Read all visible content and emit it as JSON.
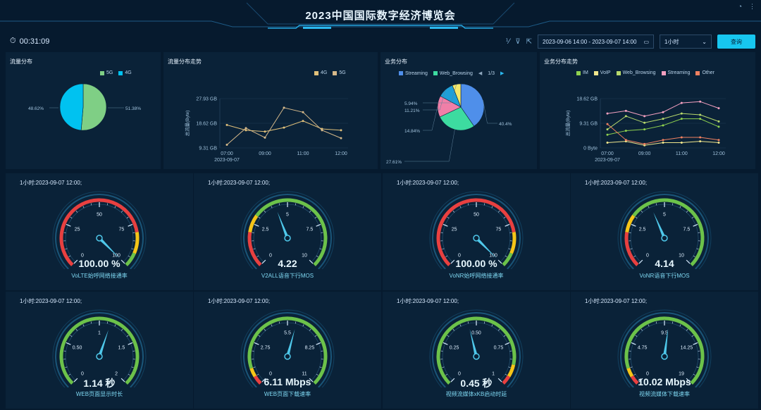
{
  "header": {
    "title": "2023中国国际数字经济博览会"
  },
  "timer": {
    "value": "00:31:09"
  },
  "toolbar": {
    "date_range": "2023-09-06 14:00 - 2023-09-07 14:00",
    "granularity": "1小时",
    "query_label": "查询"
  },
  "colors": {
    "accent": "#17c6ef",
    "green": "#6cc24a",
    "red": "#e84040",
    "yellow": "#f5c518"
  },
  "chart_data": [
    {
      "id": "traffic_pie",
      "type": "pie",
      "title": "流量分布",
      "series": [
        {
          "name": "5G",
          "value": 51.38,
          "label": "51.38%",
          "color": "#7fcf85"
        },
        {
          "name": "4G",
          "value": 48.62,
          "label": "48.62%",
          "color": "#00c2f0"
        }
      ]
    },
    {
      "id": "traffic_trend",
      "type": "line",
      "title": "流量分布走势",
      "ylabel": "总流量(Byte)",
      "yticks": [
        "9.31 GB",
        "18.62 GB",
        "27.93 GB"
      ],
      "ylim": [
        9.31,
        27.93
      ],
      "xticks": [
        "07:00",
        "09:00",
        "11:00",
        "12:00"
      ],
      "xsub": "2023-09-07",
      "x": [
        0,
        1,
        2,
        3,
        4,
        5,
        6
      ],
      "series": [
        {
          "name": "4G",
          "color": "#e0c07a",
          "values": [
            18,
            16,
            15.5,
            17,
            19.5,
            16.5,
            16
          ]
        },
        {
          "name": "5G",
          "color": "#d6b98a",
          "values": [
            10.5,
            16.8,
            13.2,
            24.5,
            22.8,
            16,
            13
          ]
        }
      ]
    },
    {
      "id": "service_pie",
      "type": "pie",
      "title": "业务分布",
      "legend": [
        "Streaming",
        "Web_Browsing"
      ],
      "pager": "1/3",
      "series": [
        {
          "value": 40.4,
          "label": "40.4%",
          "color": "#4f8fea"
        },
        {
          "value": 27.61,
          "label": "27.61%",
          "color": "#3ddba0"
        },
        {
          "value": 14.84,
          "label": "14.84%",
          "color": "#f07fa8"
        },
        {
          "value": 11.21,
          "label": "11.21%",
          "color": "#1f9fd8"
        },
        {
          "value": 5.94,
          "label": "5.94%",
          "color": "#f4e76a"
        }
      ]
    },
    {
      "id": "service_trend",
      "type": "line",
      "title": "业务分布走势",
      "ylabel": "总流量(Byte)",
      "yticks": [
        "0 Byte",
        "9.31 GB",
        "18.62 GB"
      ],
      "ylim": [
        0,
        18.62
      ],
      "xticks": [
        "07:00",
        "09:00",
        "11:00",
        "12:00"
      ],
      "xsub": "2023-09-07",
      "x": [
        0,
        1,
        2,
        3,
        4,
        5,
        6
      ],
      "series": [
        {
          "name": "IM",
          "color": "#8fd14f",
          "values": [
            5,
            6.5,
            7,
            8.5,
            11,
            11,
            8
          ]
        },
        {
          "name": "VoIP",
          "color": "#f0e68c",
          "values": [
            2,
            2.5,
            1,
            2,
            2,
            2.5,
            2
          ]
        },
        {
          "name": "Web_Browsing",
          "color": "#b7d96c",
          "values": [
            7,
            12,
            9.5,
            11,
            13,
            12.5,
            10
          ]
        },
        {
          "name": "Streaming",
          "color": "#f4a0c0",
          "values": [
            13,
            14,
            12,
            13.5,
            17,
            17.5,
            15
          ]
        },
        {
          "name": "Other",
          "color": "#f08060",
          "values": [
            9,
            3,
            1.5,
            3,
            4,
            4,
            3
          ]
        }
      ]
    }
  ],
  "gauges": [
    {
      "timestamp": "1小时:2023-09-07 12:00;",
      "value_text": "100.00 %",
      "name": "VoLTE始呼网络接通率",
      "max": 100,
      "value": 100,
      "ticks": [
        "0",
        "25",
        "50",
        "75",
        "100"
      ],
      "bands": [
        [
          0,
          0.8,
          "#e84040"
        ],
        [
          0.8,
          0.92,
          "#f5c518"
        ],
        [
          0.92,
          1,
          "#6cc24a"
        ]
      ]
    },
    {
      "timestamp": "1小时:2023-09-07 12:00;",
      "value_text": "4.22",
      "name": "V2ALL语音下行MOS",
      "max": 10,
      "value": 4.22,
      "ticks": [
        "0",
        "2.5",
        "5",
        "7.5",
        "10"
      ],
      "bands": [
        [
          0,
          0.2,
          "#e84040"
        ],
        [
          0.2,
          0.3,
          "#f5c518"
        ],
        [
          0.3,
          1,
          "#6cc24a"
        ]
      ]
    },
    {
      "timestamp": "1小时:2023-09-07 12:00;",
      "value_text": "100.00 %",
      "name": "VoNR始呼网络接通率",
      "max": 100,
      "value": 100,
      "ticks": [
        "0",
        "25",
        "50",
        "75",
        "100"
      ],
      "bands": [
        [
          0,
          0.8,
          "#e84040"
        ],
        [
          0.8,
          0.92,
          "#f5c518"
        ],
        [
          0.92,
          1,
          "#6cc24a"
        ]
      ]
    },
    {
      "timestamp": "1小时:2023-09-07 12:00;",
      "value_text": "4.14",
      "name": "VoNR语音下行MOS",
      "max": 10,
      "value": 4.14,
      "ticks": [
        "0",
        "2.5",
        "5",
        "7.5",
        "10"
      ],
      "bands": [
        [
          0,
          0.2,
          "#e84040"
        ],
        [
          0.2,
          0.3,
          "#f5c518"
        ],
        [
          0.3,
          1,
          "#6cc24a"
        ]
      ]
    },
    {
      "timestamp": "1小时:2023-09-07 12:00;",
      "value_text": "1.14 秒",
      "name": "WEB页面显示时长",
      "max": 2,
      "value": 1.14,
      "ticks": [
        "0",
        "0.50",
        "1",
        "1.5",
        "2"
      ],
      "bands": [
        [
          0,
          0.92,
          "#6cc24a"
        ],
        [
          0.92,
          1,
          "#6cc24a"
        ]
      ]
    },
    {
      "timestamp": "1小时:2023-09-07 12:00;",
      "value_text": "6.11 Mbps",
      "name": "WEB页面下载速率",
      "max": 11,
      "value": 6.11,
      "ticks": [
        "0",
        "2.75",
        "5.5",
        "8.25",
        "11"
      ],
      "bands": [
        [
          0,
          0.05,
          "#e84040"
        ],
        [
          0.05,
          0.1,
          "#f5c518"
        ],
        [
          0.1,
          1,
          "#6cc24a"
        ]
      ]
    },
    {
      "timestamp": "1小时:2023-09-07 12:00;",
      "value_text": "0.45 秒",
      "name": "视频流媒体xKB启动时延",
      "max": 1,
      "value": 0.45,
      "ticks": [
        "0",
        "0.25",
        "0.50",
        "0.75",
        "1"
      ],
      "bands": [
        [
          0,
          0.88,
          "#6cc24a"
        ],
        [
          0.88,
          0.95,
          "#f5c518"
        ],
        [
          0.95,
          1,
          "#e84040"
        ]
      ]
    },
    {
      "timestamp": "1小时:2023-09-07 12:00;",
      "value_text": "10.02 Mbps",
      "name": "视频流媒体下载速率",
      "max": 19,
      "value": 10.02,
      "ticks": [
        "0",
        "4.75",
        "9.5",
        "14.25",
        "19"
      ],
      "bands": [
        [
          0,
          0.05,
          "#e84040"
        ],
        [
          0.05,
          0.1,
          "#f5c518"
        ],
        [
          0.1,
          1,
          "#6cc24a"
        ]
      ]
    }
  ]
}
